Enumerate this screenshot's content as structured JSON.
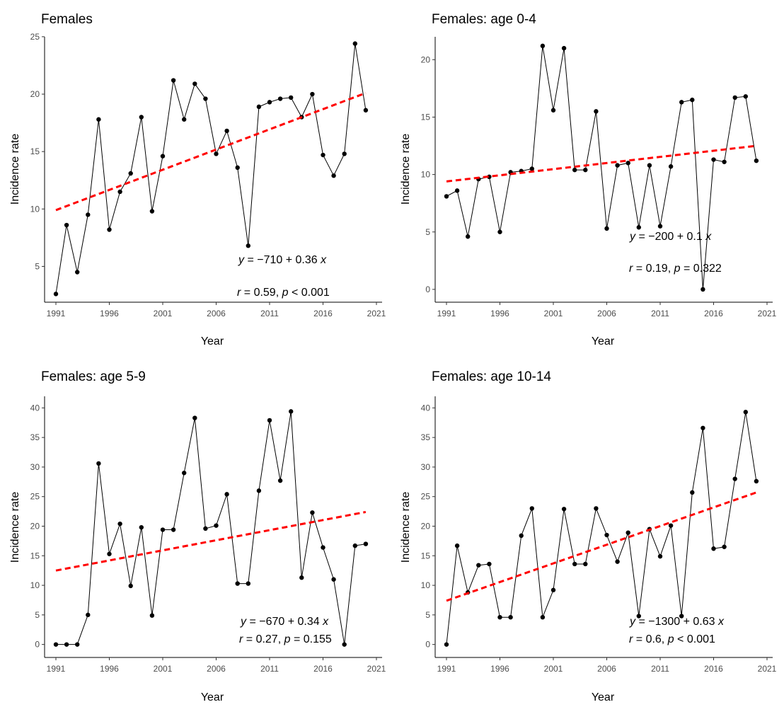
{
  "chart_data": [
    {
      "type": "line",
      "title": "Females",
      "xlabel": "Year",
      "ylabel": "Incidence rate",
      "xticks": [
        "1991",
        "1996",
        "2001",
        "2006",
        "2011",
        "2016",
        "2021"
      ],
      "yticks": [
        "5",
        "10",
        "15",
        "20",
        "25"
      ],
      "xlim": [
        1991,
        2021
      ],
      "ylim": [
        2.5,
        24.5
      ],
      "grid": false,
      "series": [
        {
          "x": [
            1991,
            1992,
            1993,
            1994,
            1995,
            1996,
            1997,
            1998,
            1999,
            2000,
            2001,
            2002,
            2003,
            2004,
            2005,
            2006,
            2007,
            2008,
            2009,
            2010,
            2011,
            2012,
            2013,
            2014,
            2015,
            2016,
            2017,
            2018,
            2019,
            2020
          ],
          "values": [
            2.6,
            8.6,
            4.5,
            9.5,
            17.8,
            8.2,
            11.5,
            13.1,
            18.0,
            9.8,
            14.6,
            21.2,
            17.8,
            20.9,
            19.6,
            14.8,
            16.8,
            13.6,
            6.8,
            18.9,
            19.3,
            19.6,
            19.7,
            18.0,
            20.0,
            14.7,
            12.9,
            14.8,
            24.4,
            18.6
          ],
          "color": "#000000"
        }
      ],
      "trend": {
        "color": "#ff0000",
        "style": "dashed",
        "x": [
          1991,
          2020
        ],
        "y": [
          9.9,
          20.1
        ]
      },
      "annotations": {
        "equation": {
          "prefix": "y",
          "text": " = −710 + 0.36 ",
          "suffix": "x"
        },
        "stats": {
          "r": "r",
          "r_text": " = 0.59, ",
          "p": "p",
          "p_text": " < 0.001"
        }
      }
    },
    {
      "type": "line",
      "title": "Females: age 0-4",
      "xlabel": "Year",
      "ylabel": "Incidence rate",
      "xticks": [
        "1991",
        "1996",
        "2001",
        "2006",
        "2011",
        "2016",
        "2021"
      ],
      "yticks": [
        "0",
        "5",
        "10",
        "15",
        "20"
      ],
      "xlim": [
        1991,
        2021
      ],
      "ylim": [
        -0.5,
        21.5
      ],
      "grid": false,
      "series": [
        {
          "x": [
            1991,
            1992,
            1993,
            1994,
            1995,
            1996,
            1997,
            1998,
            1999,
            2000,
            2001,
            2002,
            2003,
            2004,
            2005,
            2006,
            2007,
            2008,
            2009,
            2010,
            2011,
            2012,
            2013,
            2014,
            2015,
            2016,
            2017,
            2018,
            2019,
            2020
          ],
          "values": [
            8.1,
            8.6,
            4.6,
            9.6,
            9.8,
            5.0,
            10.2,
            10.3,
            10.5,
            21.2,
            15.6,
            21.0,
            10.4,
            10.4,
            15.5,
            5.3,
            10.8,
            11.0,
            5.4,
            10.8,
            5.5,
            10.7,
            16.3,
            16.5,
            0.0,
            11.3,
            11.1,
            16.7,
            16.8,
            11.2
          ],
          "color": "#000000"
        }
      ],
      "trend": {
        "color": "#ff0000",
        "style": "dashed",
        "x": [
          1991,
          2020
        ],
        "y": [
          9.4,
          12.5
        ]
      },
      "annotations": {
        "equation": {
          "prefix": "y",
          "text": " = −200 + 0.1 ",
          "suffix": "x"
        },
        "stats": {
          "r": "r",
          "r_text": " = 0.19, ",
          "p": "p",
          "p_text": " = 0.322"
        }
      }
    },
    {
      "type": "line",
      "title": "Females: age 5-9",
      "xlabel": "Year",
      "ylabel": "Incidence rate",
      "xticks": [
        "1991",
        "1996",
        "2001",
        "2006",
        "2011",
        "2016",
        "2021"
      ],
      "yticks": [
        "0",
        "5",
        "10",
        "15",
        "20",
        "25",
        "30",
        "35",
        "40"
      ],
      "xlim": [
        1991,
        2021
      ],
      "ylim": [
        -1,
        41
      ],
      "grid": false,
      "series": [
        {
          "x": [
            1991,
            1992,
            1993,
            1994,
            1995,
            1996,
            1997,
            1998,
            1999,
            2000,
            2001,
            2002,
            2003,
            2004,
            2005,
            2006,
            2007,
            2008,
            2009,
            2010,
            2011,
            2012,
            2013,
            2014,
            2015,
            2016,
            2017,
            2018,
            2019,
            2020
          ],
          "values": [
            0.0,
            0.0,
            0.0,
            5.0,
            30.6,
            15.3,
            20.4,
            9.9,
            19.8,
            4.9,
            19.4,
            19.4,
            29.0,
            38.3,
            19.6,
            20.1,
            25.4,
            10.3,
            10.3,
            26.0,
            37.9,
            27.7,
            39.4,
            11.3,
            22.3,
            16.4,
            11.0,
            0.0,
            16.7,
            17.0
          ],
          "color": "#000000"
        }
      ],
      "trend": {
        "color": "#ff0000",
        "style": "dashed",
        "x": [
          1991,
          2020
        ],
        "y": [
          12.5,
          22.4
        ]
      },
      "annotations": {
        "equation": {
          "prefix": "y",
          "text": " = −670 + 0.34 ",
          "suffix": "x"
        },
        "stats": {
          "r": "r",
          "r_text": " = 0.27, ",
          "p": "p",
          "p_text": " = 0.155"
        }
      }
    },
    {
      "type": "line",
      "title": "Females: age 10-14",
      "xlabel": "Year",
      "ylabel": "Incidence rate",
      "xticks": [
        "1991",
        "1996",
        "2001",
        "2006",
        "2011",
        "2016",
        "2021"
      ],
      "yticks": [
        "0",
        "5",
        "10",
        "15",
        "20",
        "25",
        "30",
        "35",
        "40"
      ],
      "xlim": [
        1991,
        2021
      ],
      "ylim": [
        -1,
        41
      ],
      "grid": false,
      "series": [
        {
          "x": [
            1991,
            1992,
            1993,
            1994,
            1995,
            1996,
            1997,
            1998,
            1999,
            2000,
            2001,
            2002,
            2003,
            2004,
            2005,
            2006,
            2007,
            2008,
            2009,
            2010,
            2011,
            2012,
            2013,
            2014,
            2015,
            2016,
            2017,
            2018,
            2019,
            2020
          ],
          "values": [
            0.0,
            16.7,
            8.8,
            13.4,
            13.6,
            4.6,
            4.6,
            18.4,
            23.0,
            4.6,
            9.2,
            22.9,
            13.6,
            13.6,
            23.0,
            18.5,
            14.0,
            18.9,
            4.8,
            19.5,
            14.9,
            20.1,
            4.8,
            25.7,
            36.6,
            16.2,
            16.5,
            28.0,
            39.3,
            27.6
          ],
          "color": "#000000"
        }
      ],
      "trend": {
        "color": "#ff0000",
        "style": "dashed",
        "x": [
          1991,
          2020
        ],
        "y": [
          7.4,
          25.7
        ]
      },
      "annotations": {
        "equation": {
          "prefix": "y",
          "text": " = −1300 + 0.63 ",
          "suffix": "x"
        },
        "stats": {
          "r": "r",
          "r_text": " = 0.6, ",
          "p": "p",
          "p_text": " < 0.001"
        }
      }
    }
  ]
}
